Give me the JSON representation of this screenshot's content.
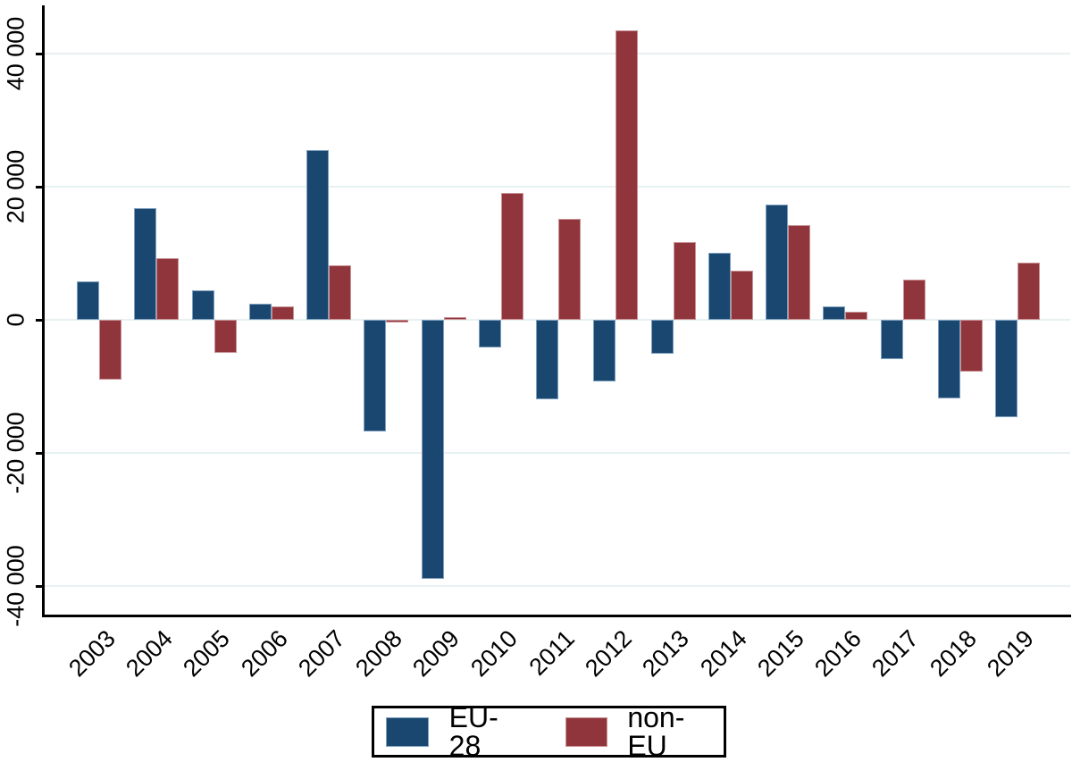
{
  "chart_data": {
    "type": "bar",
    "title": "",
    "xlabel": "",
    "ylabel": "",
    "categories": [
      "2003",
      "2004",
      "2005",
      "2006",
      "2007",
      "2008",
      "2009",
      "2010",
      "2011",
      "2012",
      "2013",
      "2014",
      "2015",
      "2016",
      "2017",
      "2018",
      "2019"
    ],
    "series": [
      {
        "name": "EU-28",
        "color": "#1A476F",
        "edge_color": "#7E9FBE",
        "values": [
          5800,
          16800,
          4400,
          2400,
          25500,
          -16800,
          -38900,
          -4200,
          -11900,
          -9300,
          -5100,
          10100,
          17300,
          2000,
          -5900,
          -11800,
          -14600
        ]
      },
      {
        "name": "non-EU",
        "color": "#90353B",
        "edge_color": "#C89296",
        "values": [
          -9000,
          9300,
          -5000,
          2000,
          8200,
          -400,
          400,
          19100,
          15200,
          43500,
          11700,
          7400,
          14200,
          1200,
          6000,
          -7800,
          8600
        ]
      }
    ],
    "y_ticks": {
      "values": [
        40000,
        20000,
        0,
        -20000,
        -40000
      ],
      "labels": [
        "40 000",
        "20 000",
        "0",
        "-20 000",
        "-40 000"
      ]
    },
    "ylim": [
      -44500,
      47200
    ],
    "grid": true,
    "gridline_color": "#E8F1F2",
    "axis_color": "#000000",
    "legend_position": "bottom"
  }
}
